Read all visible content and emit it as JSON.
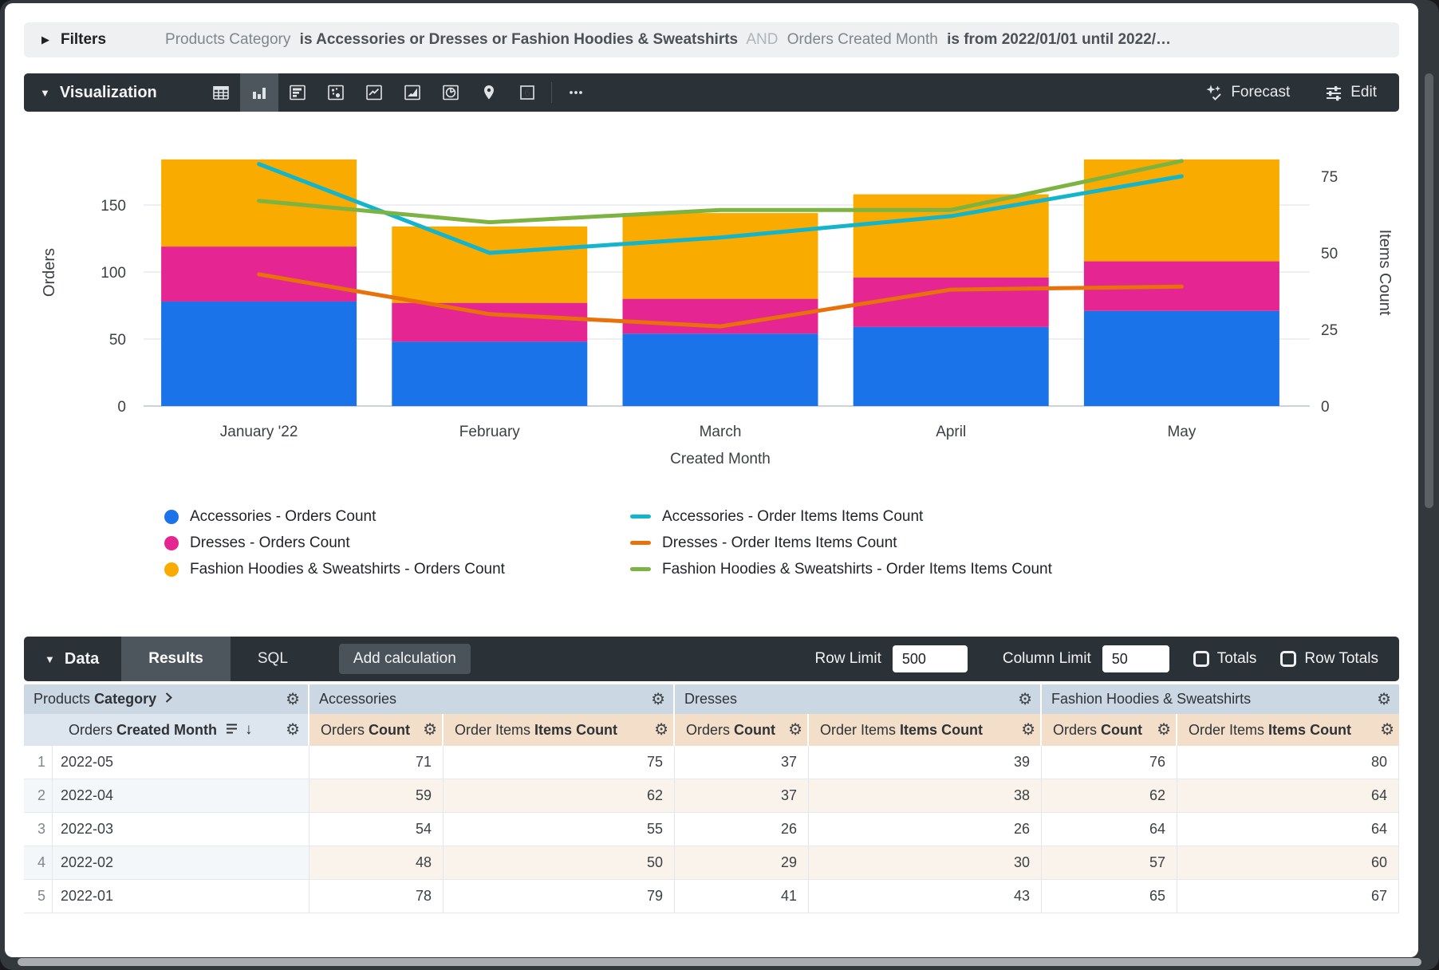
{
  "filters": {
    "toggle_label": "Filters",
    "segments": [
      {
        "text": "Products Category",
        "style": "field"
      },
      {
        "text": "is Accessories or Dresses or Fashion Hoodies & Sweatshirts",
        "style": "value"
      },
      {
        "text": "AND",
        "style": "conjunction"
      },
      {
        "text": "Orders Created Month",
        "style": "field"
      },
      {
        "text": "is from 2022/01/01 until 2022/…",
        "style": "value"
      }
    ]
  },
  "viz_bar": {
    "label": "Visualization",
    "chart_type_icons": [
      "table",
      "column",
      "bar",
      "scatter",
      "line",
      "area",
      "pie",
      "map",
      "single-value",
      "more"
    ],
    "active_icon": "column",
    "forecast_label": "Forecast",
    "edit_label": "Edit"
  },
  "chart_data": {
    "type": "combo stacked-bar + line (dual axis)",
    "categories": [
      "January '22",
      "February",
      "March",
      "April",
      "May"
    ],
    "xlabel": "Created Month",
    "left_axis": {
      "label": "Orders",
      "ticks": [
        0,
        50,
        100,
        150
      ]
    },
    "right_axis": {
      "label": "Items Count",
      "ticks": [
        0,
        25,
        50,
        75
      ]
    },
    "grid": true,
    "legend_position": "bottom",
    "bar_series": [
      {
        "name": "Accessories - Orders Count",
        "color": "#1a73e8",
        "values": [
          78,
          48,
          54,
          59,
          71
        ]
      },
      {
        "name": "Dresses - Orders Count",
        "color": "#e52592",
        "values": [
          41,
          29,
          26,
          37,
          37
        ]
      },
      {
        "name": "Fashion Hoodies & Sweatshirts - Orders Count",
        "color": "#f9ab00",
        "values": [
          65,
          57,
          64,
          62,
          76
        ]
      }
    ],
    "line_series": [
      {
        "name": "Accessories - Order Items Items Count",
        "color": "#12b5cb",
        "values": [
          79,
          50,
          55,
          62,
          75
        ]
      },
      {
        "name": "Dresses - Order Items Items Count",
        "color": "#e8710a",
        "values": [
          43,
          30,
          26,
          38,
          39
        ]
      },
      {
        "name": "Fashion Hoodies & Sweatshirts - Order Items Items Count",
        "color": "#7cb342",
        "values": [
          67,
          60,
          64,
          64,
          80
        ]
      }
    ]
  },
  "data_panel": {
    "label": "Data",
    "tabs": [
      {
        "label": "Results"
      },
      {
        "label": "SQL"
      }
    ],
    "active_tab": "Results",
    "add_calculation_label": "Add calculation",
    "row_limit_label": "Row Limit",
    "row_limit_value": "500",
    "column_limit_label": "Column Limit",
    "column_limit_value": "50",
    "totals_label": "Totals",
    "totals_checked": false,
    "row_totals_label": "Row Totals",
    "row_totals_checked": false
  },
  "table": {
    "dimension_group": {
      "prefix": "Products",
      "bold": "Category"
    },
    "dimension_col": {
      "prefix": "Orders",
      "bold": "Created Month"
    },
    "groups": [
      {
        "label": "Accessories"
      },
      {
        "label": "Dresses"
      },
      {
        "label": "Fashion Hoodies & Sweatshirts"
      }
    ],
    "measure_cols": [
      {
        "prefix": "Orders",
        "bold": "Count"
      },
      {
        "prefix": "Order Items",
        "bold": "Items Count"
      }
    ],
    "rows": [
      {
        "n": "1",
        "month": "2022-05",
        "values": [
          71,
          75,
          37,
          39,
          76,
          80
        ]
      },
      {
        "n": "2",
        "month": "2022-04",
        "values": [
          59,
          62,
          37,
          38,
          62,
          64
        ]
      },
      {
        "n": "3",
        "month": "2022-03",
        "values": [
          54,
          55,
          26,
          26,
          64,
          64
        ]
      },
      {
        "n": "4",
        "month": "2022-02",
        "values": [
          48,
          50,
          29,
          30,
          57,
          60
        ]
      },
      {
        "n": "5",
        "month": "2022-01",
        "values": [
          78,
          79,
          41,
          43,
          65,
          67
        ]
      }
    ]
  }
}
